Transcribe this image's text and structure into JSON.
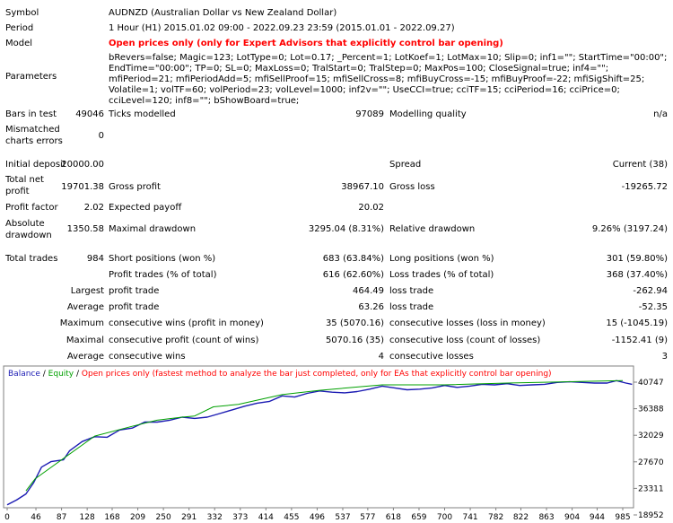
{
  "report": {
    "symbol_label": "Symbol",
    "symbol_value": "AUDNZD (Australian Dollar vs New Zealand Dollar)",
    "period_label": "Period",
    "period_value": "1 Hour (H1) 2015.01.02 09:00 - 2022.09.23 23:59 (2015.01.01 - 2022.09.27)",
    "model_label": "Model",
    "model_value": "Open prices only (only for Expert Advisors that explicitly control bar opening)",
    "parameters_label": "Parameters",
    "parameters_value": "bRevers=false; Magic=123; LotType=0; Lot=0.17; _Percent=1; LotKoef=1; LotMax=10; Slip=0; inf1=\"\"; StartTime=\"00:00\"; EndTime=\"00:00\"; TP=0; SL=0; MaxLoss=0; TralStart=0; TralStep=0; MaxPos=100; CloseSignal=true; inf4=\"\"; mfiPeriod=21; mfiPeriodAdd=5; mfiSellProof=15; mfiSellCross=8; mfiBuyCross=-15; mfiBuyProof=-22; mfiSigShift=25; Volatile=1; volTF=60; volPeriod=23; volLevel=1000; inf2v=\"\"; UseCCI=true; cciTF=15; cciPeriod=16; cciPrice=0; cciLevel=120; inf8=\"\"; bShowBoard=true;",
    "bars_label": "Bars in test",
    "bars_value": "49046",
    "ticks_label": "Ticks modelled",
    "ticks_value": "97089",
    "quality_label": "Modelling quality",
    "quality_value": "n/a",
    "mismatch_label_1": "Mismatched",
    "mismatch_label_2": "charts errors",
    "mismatch_value": "0",
    "deposit_label": "Initial deposit",
    "deposit_value": "20000.00",
    "spread_label": "Spread",
    "spread_value": "Current (38)",
    "net_label_1": "Total net",
    "net_label_2": "profit",
    "net_value": "19701.38",
    "gross_profit_label": "Gross profit",
    "gross_profit_value": "38967.10",
    "gross_loss_label": "Gross loss",
    "gross_loss_value": "-19265.72",
    "pf_label": "Profit factor",
    "pf_value": "2.02",
    "payoff_label": "Expected payoff",
    "payoff_value": "20.02",
    "abs_dd_label_1": "Absolute",
    "abs_dd_label_2": "drawdown",
    "abs_dd_value": "1350.58",
    "max_dd_label": "Maximal drawdown",
    "max_dd_value": "3295.04 (8.31%)",
    "rel_dd_label": "Relative drawdown",
    "rel_dd_value": "9.26% (3197.24)",
    "trades_label": "Total trades",
    "trades_value": "984",
    "short_label": "Short positions (won %)",
    "short_value": "683 (63.84%)",
    "long_label": "Long positions (won %)",
    "long_value": "301 (59.80%)",
    "profit_trades_label": "Profit trades (% of total)",
    "profit_trades_value": "616 (62.60%)",
    "loss_trades_label": "Loss trades (% of total)",
    "loss_trades_value": "368 (37.40%)",
    "largest_label": "Largest",
    "largest_profit_label": "profit trade",
    "largest_profit_value": "464.49",
    "largest_loss_label": "loss trade",
    "largest_loss_value": "-262.94",
    "average_label": "Average",
    "average_profit_label": "profit trade",
    "average_profit_value": "63.26",
    "average_loss_label": "loss trade",
    "average_loss_value": "-52.35",
    "maximum_label": "Maximum",
    "max_cons_wins_label": "consecutive wins (profit in money)",
    "max_cons_wins_value": "35 (5070.16)",
    "max_cons_losses_label": "consecutive losses (loss in money)",
    "max_cons_losses_value": "15 (-1045.19)",
    "maximal_label": "Maximal",
    "maximal_profit_label": "consecutive profit (count of wins)",
    "maximal_profit_value": "5070.16 (35)",
    "maximal_loss_label": "consecutive loss (count of losses)",
    "maximal_loss_value": "-1152.41 (9)",
    "avg_cons_label": "Average",
    "avg_wins_label": "consecutive wins",
    "avg_wins_value": "4",
    "avg_losses_label": "consecutive losses",
    "avg_losses_value": "3"
  },
  "chart_legend": {
    "balance": "Balance",
    "sep1": " / ",
    "equity": "Equity",
    "sep2": " / ",
    "note": "Open prices only (fastest method to analyze the bar just completed, only for EAs that explicitly control bar opening)"
  },
  "colors": {
    "balance": "#1b1bb3",
    "equity": "#00a000",
    "note": "#ff0000"
  },
  "chart_data": {
    "type": "line",
    "title": "",
    "xlabel": "",
    "ylabel": "",
    "x_ticks": [
      "0",
      "46",
      "87",
      "128",
      "168",
      "209",
      "250",
      "291",
      "332",
      "373",
      "414",
      "455",
      "496",
      "537",
      "577",
      "618",
      "659",
      "700",
      "741",
      "782",
      "822",
      "863",
      "904",
      "944",
      "985"
    ],
    "y_ticks": [
      "40747",
      "36388",
      "32029",
      "27670",
      "23311",
      "18952"
    ],
    "ylim": [
      18952,
      42000
    ],
    "xlim": [
      0,
      1000
    ],
    "series": [
      {
        "name": "Balance",
        "x": [
          0,
          15,
          30,
          42,
          55,
          70,
          90,
          100,
          120,
          140,
          160,
          180,
          200,
          220,
          240,
          260,
          280,
          300,
          320,
          340,
          360,
          380,
          400,
          420,
          440,
          460,
          480,
          500,
          520,
          540,
          560,
          580,
          600,
          620,
          640,
          660,
          680,
          700,
          720,
          740,
          760,
          780,
          800,
          820,
          840,
          860,
          880,
          900,
          920,
          940,
          960,
          975,
          990,
          1000
        ],
        "y": [
          20600,
          21400,
          22400,
          24200,
          26800,
          27700,
          28000,
          29500,
          31000,
          31800,
          31700,
          32900,
          33200,
          34200,
          34200,
          34500,
          35000,
          34800,
          35000,
          35600,
          36200,
          36800,
          37300,
          37600,
          38500,
          38300,
          38900,
          39300,
          39100,
          39000,
          39200,
          39600,
          40100,
          39800,
          39500,
          39600,
          39800,
          40200,
          39900,
          40100,
          40400,
          40300,
          40500,
          40200,
          40300,
          40400,
          40700,
          40800,
          40700,
          40600,
          40600,
          41000,
          40600,
          40400
        ]
      },
      {
        "name": "Equity",
        "x": [
          30,
          45,
          140,
          200,
          240,
          280,
          300,
          330,
          370,
          440,
          500,
          600,
          700,
          800,
          985
        ],
        "y": [
          22900,
          24900,
          31900,
          33500,
          34500,
          35000,
          35200,
          36700,
          37100,
          38700,
          39400,
          40300,
          40300,
          40600,
          41000
        ]
      }
    ]
  }
}
